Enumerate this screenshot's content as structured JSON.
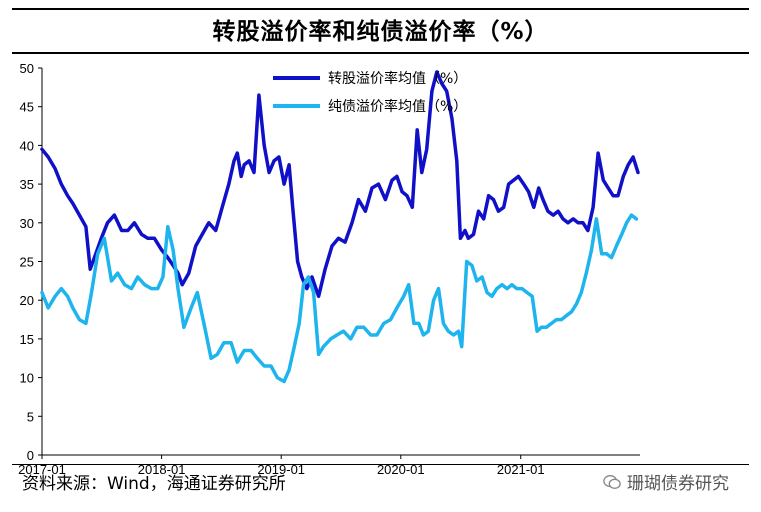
{
  "header": {
    "title": "转股溢价率和纯债溢价率（%）"
  },
  "footer": {
    "source": "资料来源：Wind，海通证券研究所",
    "watermark": "珊瑚债券研究"
  },
  "chart_data": {
    "type": "line",
    "title": "转股溢价率和纯债溢价率（%）",
    "xlabel": "",
    "ylabel": "",
    "ylim": [
      0,
      50
    ],
    "yticks": [
      0,
      5,
      10,
      15,
      20,
      25,
      30,
      35,
      40,
      45,
      50
    ],
    "xlim": [
      "2017-01-01",
      "2021-12-31"
    ],
    "xticks": [
      "2017-01",
      "2018-01",
      "2019-01",
      "2020-01",
      "2021-01"
    ],
    "grid": false,
    "legend": "top",
    "series": [
      {
        "name": "转股溢价率均值（%）",
        "color": "#1010C8",
        "x": [
          "2017-01-01",
          "2017-01-20",
          "2017-02-10",
          "2017-03-01",
          "2017-03-20",
          "2017-04-05",
          "2017-04-25",
          "2017-05-15",
          "2017-05-28",
          "2017-06-10",
          "2017-07-01",
          "2017-07-20",
          "2017-08-10",
          "2017-09-01",
          "2017-09-20",
          "2017-10-10",
          "2017-11-01",
          "2017-11-20",
          "2017-12-10",
          "2018-01-01",
          "2018-01-20",
          "2018-02-05",
          "2018-02-20",
          "2018-03-05",
          "2018-03-25",
          "2018-04-15",
          "2018-05-05",
          "2018-05-25",
          "2018-06-15",
          "2018-07-05",
          "2018-07-25",
          "2018-08-10",
          "2018-08-20",
          "2018-09-01",
          "2018-09-10",
          "2018-09-25",
          "2018-10-10",
          "2018-10-25",
          "2018-11-10",
          "2018-11-25",
          "2018-12-10",
          "2018-12-25",
          "2019-01-10",
          "2019-01-25",
          "2019-02-05",
          "2019-02-20",
          "2019-03-05",
          "2019-03-20",
          "2019-04-05",
          "2019-04-25",
          "2019-05-15",
          "2019-06-05",
          "2019-06-25",
          "2019-07-15",
          "2019-08-05",
          "2019-08-25",
          "2019-09-15",
          "2019-10-05",
          "2019-10-25",
          "2019-11-15",
          "2019-12-05",
          "2019-12-20",
          "2020-01-05",
          "2020-01-20",
          "2020-02-05",
          "2020-02-20",
          "2020-03-05",
          "2020-03-20",
          "2020-04-05",
          "2020-04-20",
          "2020-05-05",
          "2020-05-20",
          "2020-06-05",
          "2020-06-20",
          "2020-07-01",
          "2020-07-15",
          "2020-07-25",
          "2020-08-10",
          "2020-08-25",
          "2020-09-10",
          "2020-09-25",
          "2020-10-10",
          "2020-10-25",
          "2020-11-10",
          "2020-11-25",
          "2020-12-10",
          "2020-12-25",
          "2021-01-10",
          "2021-01-25",
          "2021-02-10",
          "2021-02-25",
          "2021-03-10",
          "2021-03-25",
          "2021-04-10",
          "2021-04-25",
          "2021-05-10",
          "2021-05-25",
          "2021-06-10",
          "2021-06-25",
          "2021-07-10",
          "2021-07-25",
          "2021-08-10",
          "2021-08-25",
          "2021-09-10",
          "2021-09-25",
          "2021-10-10",
          "2021-10-25",
          "2021-11-10",
          "2021-11-25",
          "2021-12-10",
          "2021-12-25"
        ],
        "values": [
          39.5,
          38.5,
          37,
          35,
          33.5,
          32.5,
          31,
          29.5,
          24,
          25.5,
          28,
          30,
          31,
          29,
          29,
          30,
          28.5,
          28,
          28,
          26.5,
          25.5,
          24.5,
          23.5,
          22,
          23.5,
          27,
          28.5,
          30,
          29,
          32,
          35,
          38,
          39,
          36,
          37.5,
          38,
          36.5,
          46.5,
          40,
          36.5,
          38,
          38.5,
          35,
          37.5,
          32,
          25,
          23,
          21.5,
          23,
          20.5,
          24,
          27,
          28,
          27.5,
          30,
          33,
          31.5,
          34.5,
          35,
          33,
          35.5,
          36,
          34,
          33.5,
          32,
          42,
          36.5,
          39.5,
          47,
          49.5,
          48,
          47,
          43.5,
          38,
          28,
          29,
          28,
          28.5,
          31.5,
          30.5,
          33.5,
          33,
          31.5,
          32,
          35,
          35.5,
          36,
          35,
          34,
          32,
          34.5,
          33,
          31.5,
          31,
          31.5,
          30.5,
          30,
          30.5,
          30,
          30,
          29,
          32,
          39,
          35.5,
          34.5,
          33.5,
          33.5,
          36,
          37.5,
          38.5,
          36.5
        ]
      },
      {
        "name": "纯债溢价率均值（%）",
        "color": "#1EB4EE",
        "x": [
          "2017-01-01",
          "2017-01-20",
          "2017-02-10",
          "2017-03-01",
          "2017-03-20",
          "2017-04-05",
          "2017-04-25",
          "2017-05-15",
          "2017-06-01",
          "2017-06-20",
          "2017-07-10",
          "2017-08-01",
          "2017-08-20",
          "2017-09-10",
          "2017-10-01",
          "2017-10-20",
          "2017-11-10",
          "2017-12-01",
          "2017-12-20",
          "2018-01-05",
          "2018-01-20",
          "2018-02-05",
          "2018-02-20",
          "2018-03-10",
          "2018-04-01",
          "2018-04-20",
          "2018-05-10",
          "2018-06-01",
          "2018-06-20",
          "2018-07-10",
          "2018-08-01",
          "2018-08-20",
          "2018-09-10",
          "2018-10-01",
          "2018-10-20",
          "2018-11-10",
          "2018-12-01",
          "2018-12-20",
          "2019-01-10",
          "2019-01-25",
          "2019-02-10",
          "2019-02-25",
          "2019-03-10",
          "2019-03-25",
          "2019-04-10",
          "2019-04-25",
          "2019-05-10",
          "2019-06-01",
          "2019-06-20",
          "2019-07-10",
          "2019-08-01",
          "2019-08-20",
          "2019-09-10",
          "2019-10-01",
          "2019-10-20",
          "2019-11-10",
          "2019-12-01",
          "2019-12-20",
          "2020-01-10",
          "2020-01-25",
          "2020-02-10",
          "2020-02-25",
          "2020-03-10",
          "2020-03-25",
          "2020-04-10",
          "2020-04-25",
          "2020-05-10",
          "2020-05-25",
          "2020-06-10",
          "2020-06-25",
          "2020-07-05",
          "2020-07-20",
          "2020-08-05",
          "2020-08-20",
          "2020-09-05",
          "2020-09-20",
          "2020-10-05",
          "2020-10-20",
          "2020-11-05",
          "2020-11-20",
          "2020-12-05",
          "2020-12-20",
          "2021-01-05",
          "2021-01-20",
          "2021-02-05",
          "2021-02-20",
          "2021-03-05",
          "2021-03-20",
          "2021-04-05",
          "2021-04-20",
          "2021-05-05",
          "2021-05-20",
          "2021-06-05",
          "2021-06-20",
          "2021-07-05",
          "2021-07-20",
          "2021-08-05",
          "2021-08-20",
          "2021-09-05",
          "2021-09-20",
          "2021-10-05",
          "2021-10-20",
          "2021-11-05",
          "2021-11-20",
          "2021-12-05",
          "2021-12-20"
        ],
        "values": [
          21,
          19,
          20.5,
          21.5,
          20.5,
          19,
          17.5,
          17,
          21,
          26,
          28,
          22.5,
          23.5,
          22,
          21.5,
          23,
          22,
          21.5,
          21.5,
          23,
          29.5,
          26.5,
          21.5,
          16.5,
          19,
          21,
          17,
          12.5,
          13,
          14.5,
          14.5,
          12,
          13.5,
          13.5,
          12.5,
          11.5,
          11.5,
          10,
          9.5,
          11,
          14,
          17,
          22,
          23,
          21,
          13,
          14,
          15,
          15.5,
          16,
          15,
          16.5,
          16.5,
          15.5,
          15.5,
          17,
          17.5,
          19,
          20.5,
          22,
          17,
          17,
          15.5,
          16,
          20,
          21.5,
          17,
          16,
          15.5,
          16,
          14,
          25,
          24.5,
          22.5,
          23,
          21,
          20.5,
          21.5,
          22,
          21.5,
          22,
          21.5,
          21.5,
          21,
          20.5,
          16,
          16.5,
          16.5,
          17,
          17.5,
          17.5,
          18,
          18.5,
          19.5,
          21,
          23.5,
          26.5,
          30.5,
          26,
          26,
          25.5,
          27,
          28.5,
          30,
          31,
          30.5
        ]
      }
    ]
  }
}
